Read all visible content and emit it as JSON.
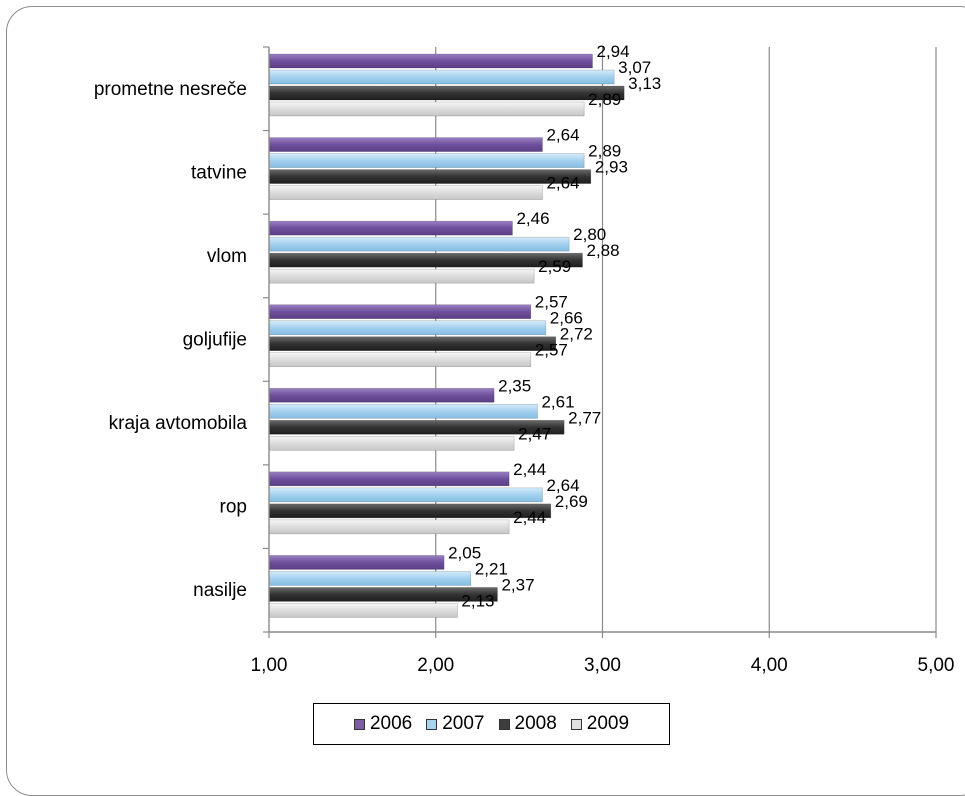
{
  "chart_data": {
    "type": "bar",
    "orientation": "horizontal",
    "categories": [
      "prometne nesreče",
      "tatvine",
      "vlom",
      "goljufije",
      "kraja avtomobila",
      "rop",
      "nasilje"
    ],
    "series": [
      {
        "name": "2006",
        "color": "#7b5ea7",
        "values": [
          2.94,
          2.64,
          2.46,
          2.57,
          2.35,
          2.44,
          2.05
        ],
        "labels": [
          "2,94",
          "2,64",
          "2,46",
          "2,57",
          "2,35",
          "2,44",
          "2,05"
        ]
      },
      {
        "name": "2007",
        "color": "#a9d4ef",
        "values": [
          3.07,
          2.89,
          2.8,
          2.66,
          2.61,
          2.64,
          2.21
        ],
        "labels": [
          "3,07",
          "2,89",
          "2,80",
          "2,66",
          "2,61",
          "2,64",
          "2,21"
        ]
      },
      {
        "name": "2008",
        "color": "#3d3d3d",
        "values": [
          3.13,
          2.93,
          2.88,
          2.72,
          2.77,
          2.69,
          2.37
        ],
        "labels": [
          "3,13",
          "2,93",
          "2,88",
          "2,72",
          "2,77",
          "2,69",
          "2,37"
        ]
      },
      {
        "name": "2009",
        "color": "#e0e0e0",
        "values": [
          2.89,
          2.64,
          2.59,
          2.57,
          2.47,
          2.44,
          2.13
        ],
        "labels": [
          "2,89",
          "2,64",
          "2,59",
          "2,57",
          "2,47",
          "2,44",
          "2,13"
        ]
      }
    ],
    "xlim": [
      1.0,
      5.0
    ],
    "xticks": [
      1,
      2,
      3,
      4,
      5
    ],
    "xtick_labels": [
      "1,00",
      "2,00",
      "3,00",
      "4,00",
      "5,00"
    ],
    "grid": "vertical major gridlines",
    "legend_position": "bottom"
  }
}
